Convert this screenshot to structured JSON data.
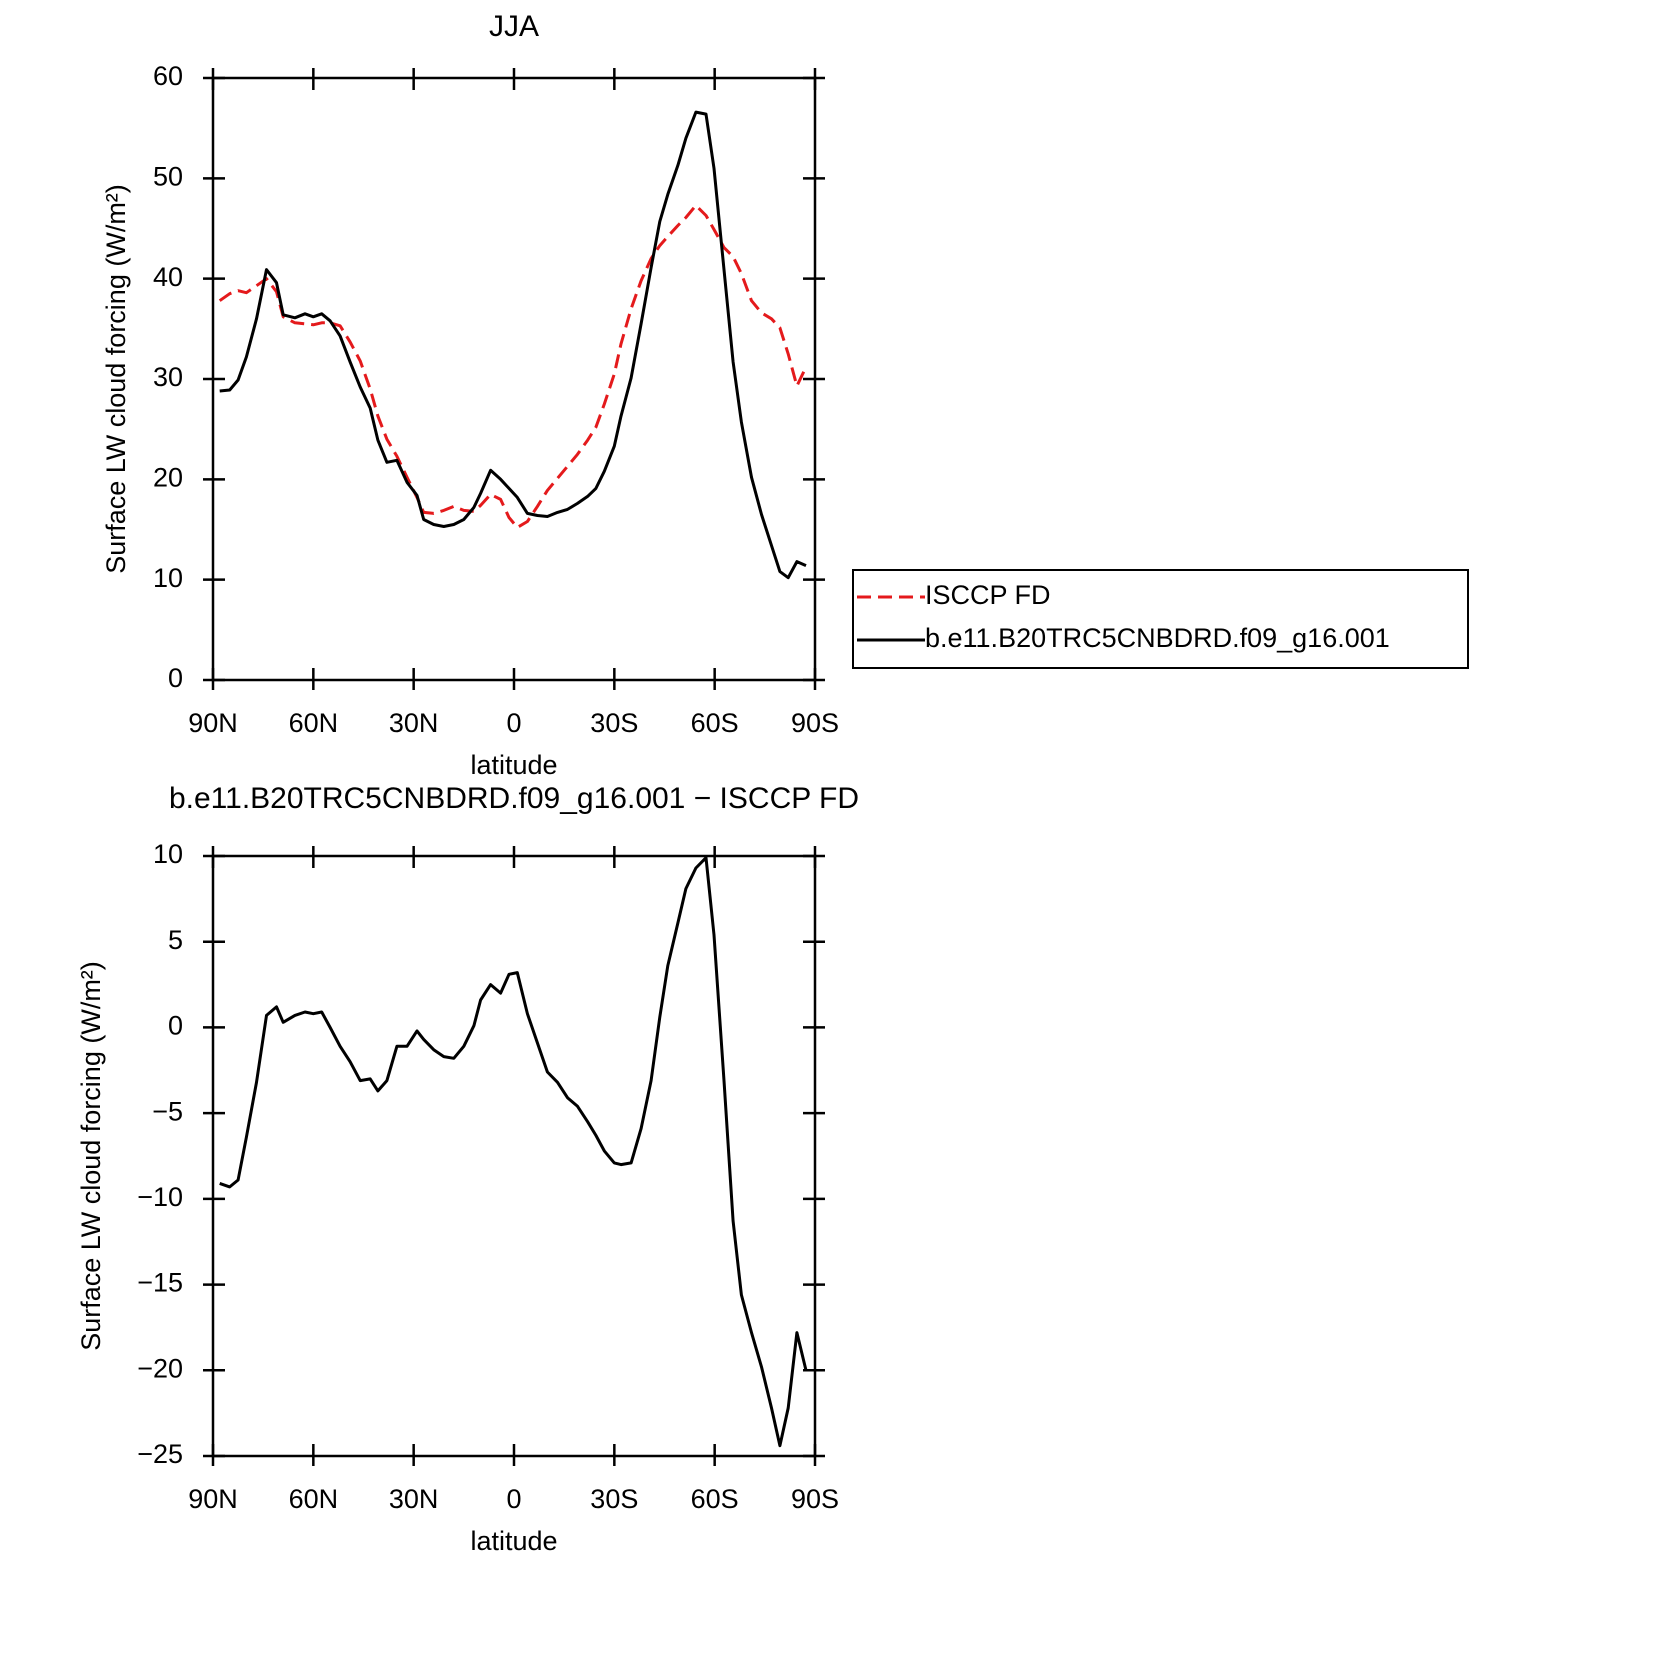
{
  "chart_data": [
    {
      "type": "line",
      "title": "JJA",
      "xlabel": "latitude",
      "ylabel": "Surface LW cloud forcing (W/m²)",
      "x": [
        88,
        85,
        82.5,
        80,
        77,
        74,
        71,
        69,
        65.5,
        62.5,
        60,
        57.5,
        55,
        52,
        49,
        46,
        43,
        40.7,
        38,
        35,
        32,
        29,
        27,
        24,
        21,
        18,
        15,
        12,
        10,
        7,
        4,
        1.5,
        -1,
        -4,
        -7,
        -10,
        -13,
        -16,
        -19,
        -22,
        -24.5,
        -27,
        -30,
        -32,
        -35,
        -38,
        -41,
        -43.6,
        -46,
        -49,
        -51.4,
        -54.4,
        -57.4,
        -59.8,
        -62.8,
        -65.5,
        -68,
        -71,
        -74,
        -77,
        -79.5,
        -82,
        -84.6,
        -87.3
      ],
      "series": [
        {
          "name": "ISCCP FD",
          "color": "#e41a1c",
          "dash": true,
          "values": [
            37.8,
            38.5,
            38.8,
            38.6,
            39.3,
            40,
            38.7,
            36.2,
            35.6,
            35.5,
            35.4,
            35.6,
            35.6,
            35.3,
            33.7,
            31.8,
            29,
            26.3,
            24,
            22.3,
            20.2,
            18.2,
            16.7,
            16.6,
            16.9,
            17.3,
            16.9,
            16.8,
            17.4,
            18.5,
            18,
            16.2,
            15.2,
            15.8,
            17.3,
            18.9,
            20.1,
            21.3,
            22.5,
            23.9,
            25.2,
            27.5,
            30.5,
            33.5,
            37,
            39.8,
            42,
            43.3,
            44.2,
            45.3,
            46.1,
            47.3,
            46.3,
            44.9,
            43.1,
            42.2,
            40.5,
            37.8,
            36.6,
            36,
            35.1,
            32.5,
            29.3,
            31.2
          ]
        },
        {
          "name": "b.e11.B20TRC5CNBDRD.f09_g16.001",
          "color": "#000000",
          "dash": false,
          "values": [
            28.8,
            28.9,
            29.9,
            32.2,
            36,
            40.9,
            39.6,
            36.4,
            36.1,
            36.5,
            36.2,
            36.5,
            35.8,
            34.3,
            31.7,
            29.2,
            27.1,
            23.9,
            21.7,
            21.9,
            19.7,
            18.4,
            16,
            15.5,
            15.3,
            15.5,
            16,
            17.2,
            18.6,
            20.9,
            20,
            19.1,
            18.2,
            16.6,
            16.4,
            16.3,
            16.7,
            17,
            17.6,
            18.3,
            19.1,
            20.8,
            23.3,
            26.3,
            30.1,
            35.5,
            41.1,
            45.7,
            48.4,
            51.3,
            54,
            56.6,
            56.4,
            51,
            40.9,
            31.7,
            25.7,
            20.2,
            16.5,
            13.4,
            10.8,
            10.2,
            11.8,
            11.4
          ]
        }
      ],
      "xlim": [
        90,
        -90
      ],
      "xticks": [
        {
          "value": 90,
          "label": "90N"
        },
        {
          "value": 60,
          "label": "60N"
        },
        {
          "value": 30,
          "label": "30N"
        },
        0,
        {
          "value": -30,
          "label": "30S"
        },
        {
          "value": -60,
          "label": "60S"
        },
        {
          "value": -90,
          "label": "90S"
        }
      ],
      "ylim": [
        0,
        60
      ],
      "yticks": [
        0,
        10,
        20,
        30,
        40,
        50,
        60
      ],
      "legend": "right"
    },
    {
      "type": "line",
      "title": "b.e11.B20TRC5CNBDRD.f09_g16.001 − ISCCP FD",
      "xlabel": "latitude",
      "ylabel": "Surface LW cloud forcing (W/m²)",
      "x": [
        88,
        85,
        82.5,
        80,
        77,
        74,
        71,
        69,
        65.5,
        62.5,
        60,
        57.5,
        55,
        52,
        49,
        46,
        43,
        40.7,
        38,
        35,
        32,
        29,
        27,
        24,
        21,
        18,
        15,
        12,
        10,
        7,
        4,
        1.5,
        -1,
        -4,
        -7,
        -10,
        -13,
        -16,
        -19,
        -22,
        -24.5,
        -27,
        -30,
        -32,
        -35,
        -38,
        -41,
        -43.6,
        -46,
        -49,
        -51.4,
        -54.4,
        -57.4,
        -59.8,
        -62.8,
        -65.5,
        -68,
        -71,
        -74,
        -77,
        -79.5,
        -82,
        -84.6,
        -87.3
      ],
      "values": [
        -9.1,
        -9.3,
        -8.9,
        -6.4,
        -3.2,
        0.7,
        1.2,
        0.3,
        0.7,
        0.9,
        0.8,
        0.9,
        0,
        -1.1,
        -2,
        -3.1,
        -3,
        -3.7,
        -3.1,
        -1.1,
        -1.1,
        -0.2,
        -0.7,
        -1.3,
        -1.7,
        -1.8,
        -1.1,
        0.1,
        1.6,
        2.5,
        2,
        3.1,
        3.2,
        0.8,
        -0.9,
        -2.6,
        -3.2,
        -4.1,
        -4.6,
        -5.5,
        -6.3,
        -7.2,
        -7.9,
        -8,
        -7.9,
        -5.9,
        -3.1,
        0.6,
        3.6,
        6.1,
        8.1,
        9.3,
        9.9,
        5.4,
        -3.1,
        -11.3,
        -15.6,
        -17.8,
        -19.8,
        -22.2,
        -24.4,
        -22.2,
        -17.8,
        -20
      ],
      "color": "#000000",
      "xlim": [
        90,
        -90
      ],
      "xticks": [
        {
          "value": 90,
          "label": "90N"
        },
        {
          "value": 60,
          "label": "60N"
        },
        {
          "value": 30,
          "label": "30N"
        },
        0,
        {
          "value": -30,
          "label": "30S"
        },
        {
          "value": -60,
          "label": "60S"
        },
        {
          "value": -90,
          "label": "90S"
        }
      ],
      "ylim": [
        -25,
        10
      ],
      "yticks": [
        {
          "value": -25,
          "label": "−25"
        },
        {
          "value": -20,
          "label": "−20"
        },
        {
          "value": -15,
          "label": "−15"
        },
        {
          "value": -10,
          "label": "−10"
        },
        {
          "value": -5,
          "label": "−5"
        },
        0,
        5,
        10
      ]
    }
  ]
}
